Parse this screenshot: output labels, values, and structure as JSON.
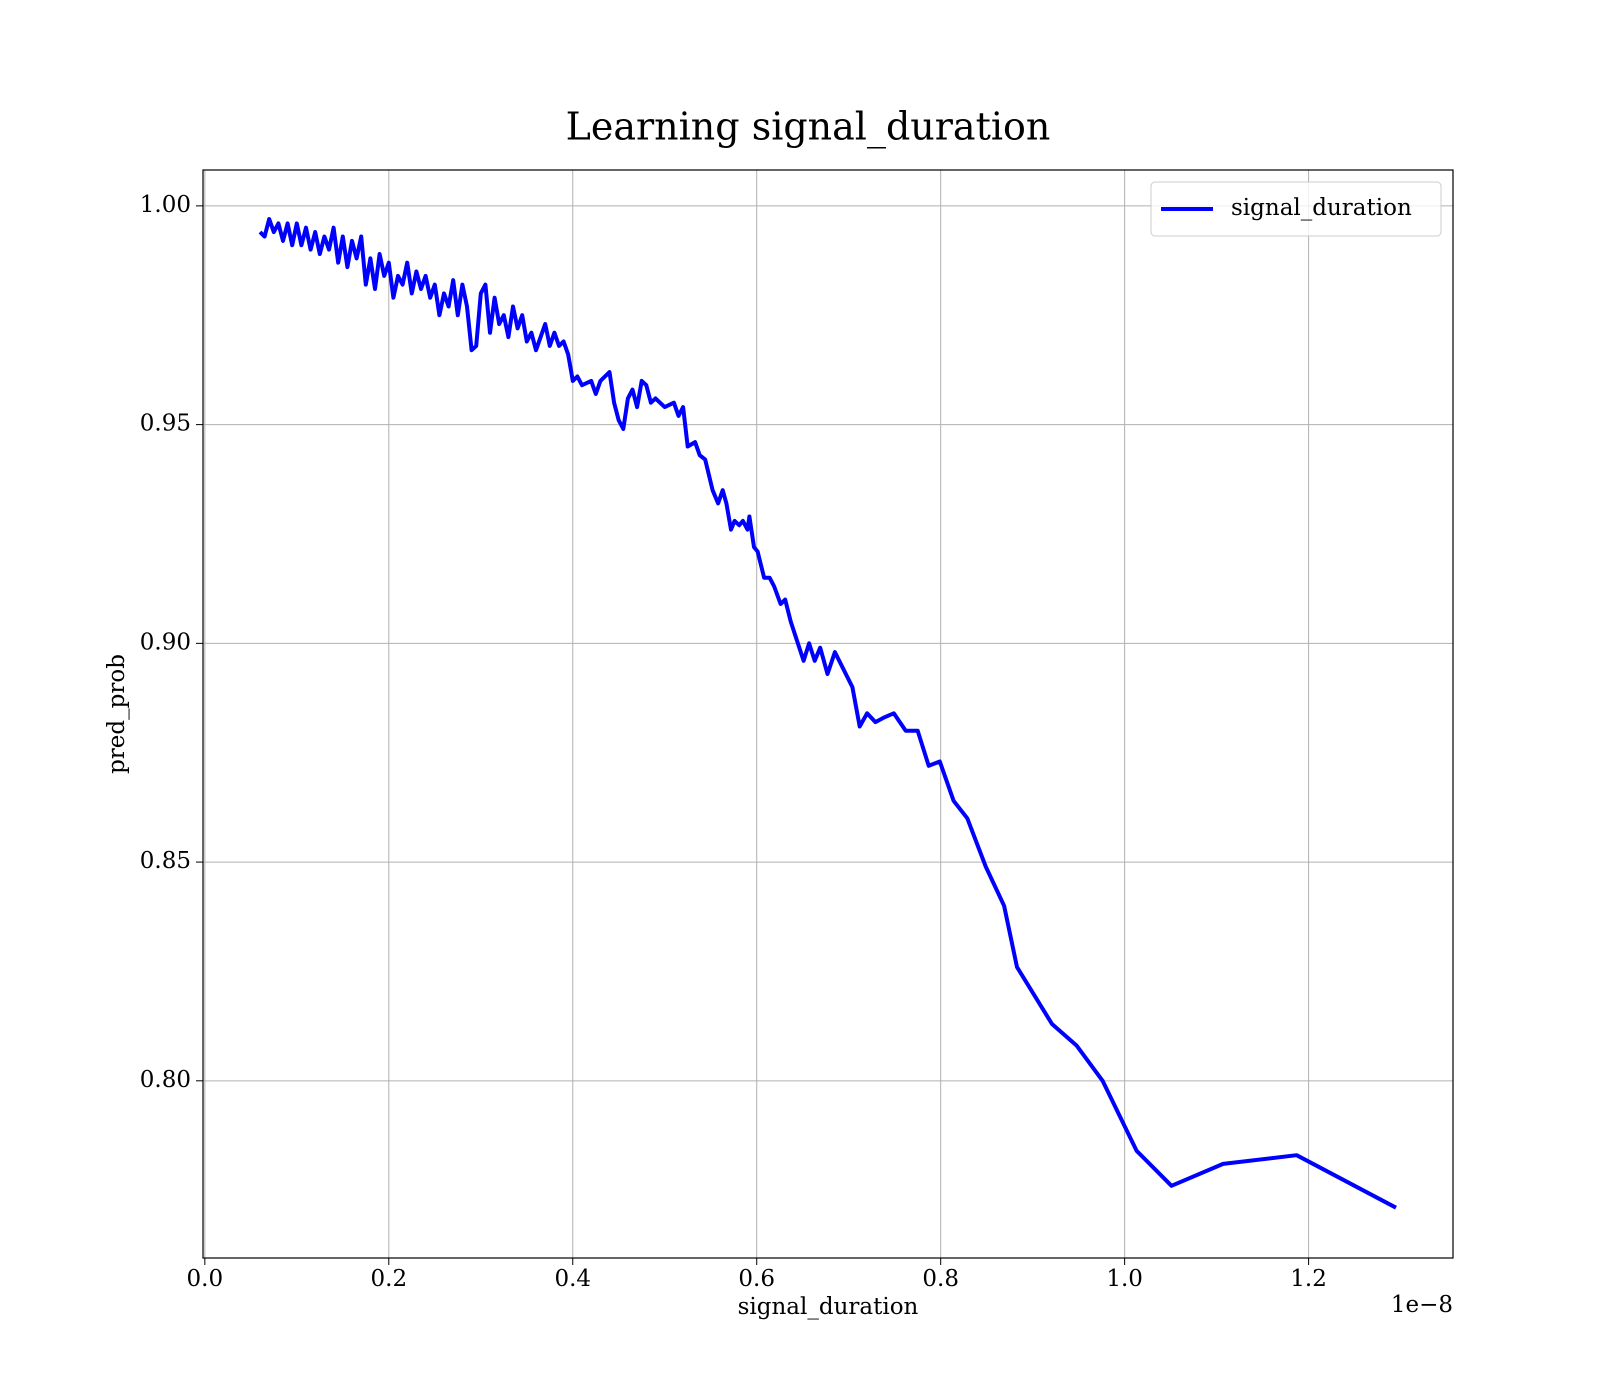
{
  "chart_data": {
    "type": "line",
    "title": "Learning signal_duration",
    "xlabel": "signal_duration",
    "ylabel": "pred_prob",
    "x_offset_label": "1e−8",
    "x": [
      0.06,
      0.065,
      0.07,
      0.075,
      0.08,
      0.085,
      0.09,
      0.095,
      0.1,
      0.105,
      0.11,
      0.115,
      0.12,
      0.125,
      0.13,
      0.135,
      0.14,
      0.145,
      0.15,
      0.155,
      0.16,
      0.165,
      0.17,
      0.175,
      0.18,
      0.185,
      0.19,
      0.195,
      0.2,
      0.205,
      0.21,
      0.215,
      0.22,
      0.225,
      0.23,
      0.235,
      0.24,
      0.245,
      0.25,
      0.255,
      0.26,
      0.265,
      0.27,
      0.275,
      0.28,
      0.285,
      0.29,
      0.295,
      0.3,
      0.305,
      0.31,
      0.315,
      0.32,
      0.325,
      0.33,
      0.335,
      0.34,
      0.345,
      0.35,
      0.355,
      0.36,
      0.365,
      0.37,
      0.375,
      0.38,
      0.385,
      0.39,
      0.395,
      0.4,
      0.405,
      0.41,
      0.42,
      0.425,
      0.43,
      0.44,
      0.445,
      0.45,
      0.455,
      0.46,
      0.465,
      0.47,
      0.475,
      0.48,
      0.485,
      0.49,
      0.5,
      0.51,
      0.515,
      0.52,
      0.525,
      0.533,
      0.538,
      0.544,
      0.552,
      0.558,
      0.563,
      0.567,
      0.572,
      0.576,
      0.581,
      0.585,
      0.59,
      0.592,
      0.597,
      0.601,
      0.608,
      0.614,
      0.619,
      0.626,
      0.631,
      0.637,
      0.651,
      0.657,
      0.663,
      0.669,
      0.677,
      0.685,
      0.704,
      0.712,
      0.72,
      0.729,
      0.738,
      0.749,
      0.762,
      0.775,
      0.787,
      0.799,
      0.814,
      0.829,
      0.849,
      0.869,
      0.883,
      0.921,
      0.948,
      0.976,
      1.013,
      1.051,
      1.107,
      1.187,
      1.295
    ],
    "series": [
      {
        "name": "signal_duration",
        "color": "#0000ff",
        "values": [
          0.994,
          0.993,
          0.997,
          0.994,
          0.996,
          0.992,
          0.996,
          0.991,
          0.996,
          0.991,
          0.995,
          0.99,
          0.994,
          0.989,
          0.993,
          0.99,
          0.995,
          0.987,
          0.993,
          0.986,
          0.992,
          0.988,
          0.993,
          0.982,
          0.988,
          0.981,
          0.989,
          0.984,
          0.987,
          0.979,
          0.984,
          0.982,
          0.987,
          0.98,
          0.985,
          0.981,
          0.984,
          0.979,
          0.982,
          0.975,
          0.98,
          0.977,
          0.983,
          0.975,
          0.982,
          0.977,
          0.967,
          0.968,
          0.98,
          0.982,
          0.971,
          0.979,
          0.973,
          0.975,
          0.97,
          0.977,
          0.972,
          0.975,
          0.969,
          0.971,
          0.967,
          0.97,
          0.973,
          0.968,
          0.971,
          0.968,
          0.969,
          0.966,
          0.96,
          0.961,
          0.959,
          0.96,
          0.957,
          0.96,
          0.962,
          0.955,
          0.951,
          0.949,
          0.956,
          0.958,
          0.954,
          0.96,
          0.959,
          0.955,
          0.956,
          0.954,
          0.955,
          0.952,
          0.954,
          0.945,
          0.946,
          0.943,
          0.942,
          0.935,
          0.932,
          0.935,
          0.932,
          0.926,
          0.928,
          0.927,
          0.928,
          0.926,
          0.929,
          0.922,
          0.921,
          0.915,
          0.915,
          0.913,
          0.909,
          0.91,
          0.905,
          0.896,
          0.9,
          0.896,
          0.899,
          0.893,
          0.898,
          0.89,
          0.881,
          0.884,
          0.882,
          0.883,
          0.884,
          0.88,
          0.88,
          0.872,
          0.873,
          0.864,
          0.86,
          0.849,
          0.84,
          0.826,
          0.813,
          0.808,
          0.8,
          0.784,
          0.776,
          0.781,
          0.783,
          0.771
        ]
      }
    ],
    "xlim": [
      -0.002,
      1.357
    ],
    "xticks": [
      {
        "value": 0,
        "label": "0.0"
      },
      0.2,
      0.4,
      0.6,
      0.8,
      {
        "value": 1,
        "label": "1.0"
      },
      1.2
    ],
    "ylim": [
      0.7595,
      1.0082
    ],
    "yticks": [
      {
        "value": 0.8,
        "label": "0.80"
      },
      0.85,
      {
        "value": 0.9,
        "label": "0.90"
      },
      0.95,
      {
        "value": 1,
        "label": "1.00"
      }
    ],
    "grid": true,
    "legend": "upper right"
  }
}
